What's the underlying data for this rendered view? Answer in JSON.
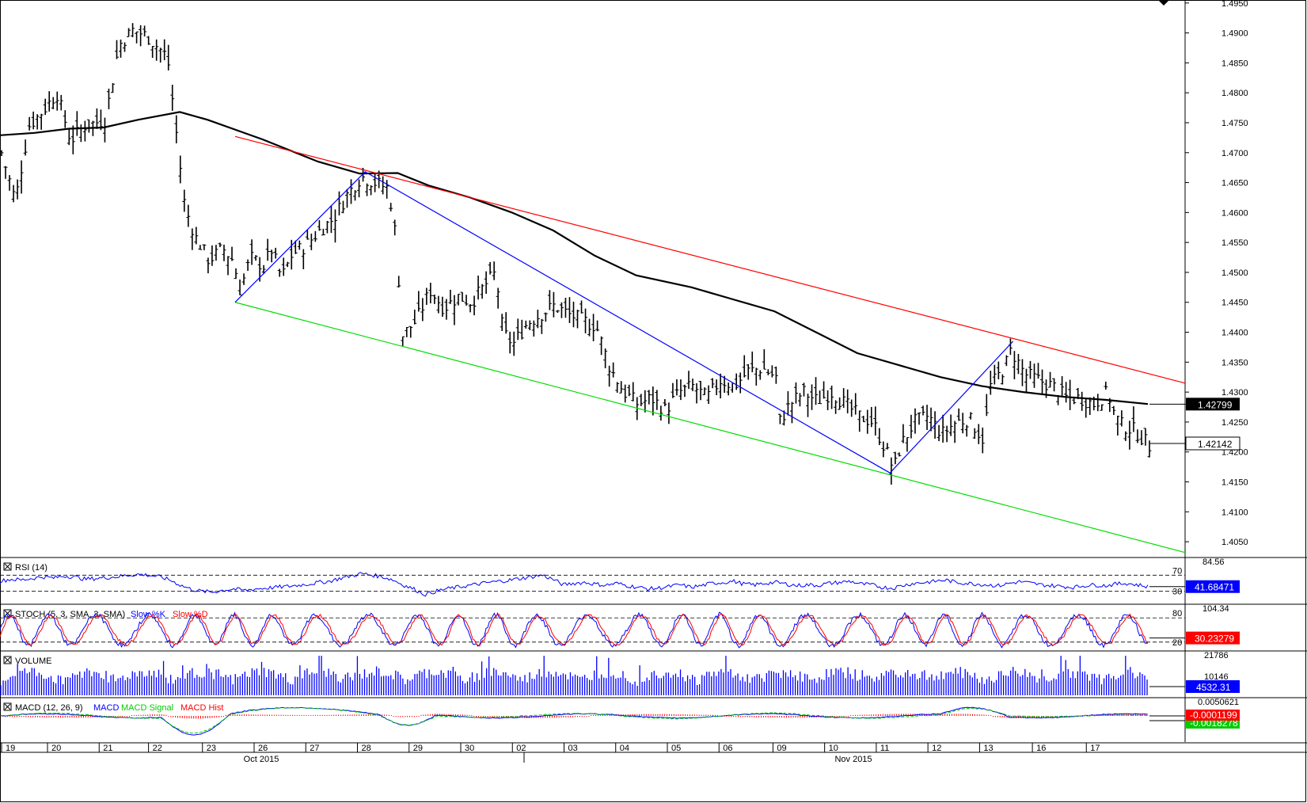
{
  "chart_data": {
    "type": "candlestick",
    "main": {
      "y_ticks": [
        "1.4950",
        "1.4900",
        "1.4850",
        "1.4800",
        "1.4750",
        "1.4700",
        "1.4650",
        "1.4600",
        "1.4550",
        "1.4500",
        "1.4450",
        "1.4400",
        "1.4350",
        "1.4300",
        "1.4250",
        "1.4200",
        "1.4150",
        "1.4100",
        "1.4050"
      ],
      "ylim": [
        1.4025,
        1.4955
      ],
      "ma_value": "1.42799",
      "last_price": "1.42142",
      "colors": {
        "bars": "#000000",
        "ma": "#000000",
        "resistance": "#ff0000",
        "support": "#00dd00",
        "zigzag": "#0000ff"
      },
      "resistance_line": [
        [
          0.34,
          1.4727
        ],
        [
          1.0,
          1.4315
        ]
      ],
      "support_line": [
        [
          0.34,
          1.445
        ],
        [
          1.0,
          1.4032
        ]
      ],
      "zigzag": [
        [
          0.34,
          1.445
        ],
        [
          0.528,
          1.4668
        ],
        [
          1.287,
          1.4165
        ],
        [
          1.465,
          1.4385
        ]
      ],
      "ma_path": [
        [
          0,
          1.4729
        ],
        [
          0.05,
          1.4733
        ],
        [
          0.1,
          1.474
        ],
        [
          0.15,
          1.4742
        ],
        [
          0.2,
          1.4755
        ],
        [
          0.26,
          1.4768
        ],
        [
          0.3,
          1.4755
        ],
        [
          0.38,
          1.4722
        ],
        [
          0.46,
          1.4685
        ],
        [
          0.52,
          1.4665
        ],
        [
          0.575,
          1.4666
        ],
        [
          0.62,
          1.4645
        ],
        [
          0.68,
          1.4625
        ],
        [
          0.74,
          1.46
        ],
        [
          0.8,
          1.457
        ],
        [
          0.86,
          1.4528
        ],
        [
          0.92,
          1.4495
        ],
        [
          1.0,
          1.4475
        ],
        [
          1.06,
          1.4455
        ],
        [
          1.12,
          1.4435
        ],
        [
          1.18,
          1.44
        ],
        [
          1.24,
          1.4365
        ],
        [
          1.3,
          1.4345
        ],
        [
          1.36,
          1.4325
        ],
        [
          1.42,
          1.431
        ],
        [
          1.48,
          1.43
        ],
        [
          1.54,
          1.4292
        ],
        [
          1.6,
          1.4287
        ],
        [
          1.66,
          1.428
        ]
      ],
      "close_path": [
        [
          0,
          1.47
        ],
        [
          0.02,
          1.462
        ],
        [
          0.04,
          1.4745
        ],
        [
          0.06,
          1.477
        ],
        [
          0.08,
          1.48
        ],
        [
          0.1,
          1.472
        ],
        [
          0.12,
          1.4745
        ],
        [
          0.15,
          1.4755
        ],
        [
          0.17,
          1.488
        ],
        [
          0.19,
          1.4905
        ],
        [
          0.21,
          1.4895
        ],
        [
          0.24,
          1.486
        ],
        [
          0.255,
          1.471
        ],
        [
          0.265,
          1.461
        ],
        [
          0.28,
          1.456
        ],
        [
          0.3,
          1.452
        ],
        [
          0.32,
          1.454
        ],
        [
          0.335,
          1.452
        ],
        [
          0.345,
          1.447
        ],
        [
          0.36,
          1.4525
        ],
        [
          0.38,
          1.451
        ],
        [
          0.39,
          1.454
        ],
        [
          0.405,
          1.449
        ],
        [
          0.42,
          1.453
        ],
        [
          0.44,
          1.4545
        ],
        [
          0.46,
          1.457
        ],
        [
          0.48,
          1.459
        ],
        [
          0.5,
          1.463
        ],
        [
          0.52,
          1.466
        ],
        [
          0.54,
          1.465
        ],
        [
          0.56,
          1.464
        ],
        [
          0.57,
          1.456
        ],
        [
          0.58,
          1.4395
        ],
        [
          0.6,
          1.442
        ],
        [
          0.62,
          1.447
        ],
        [
          0.64,
          1.444
        ],
        [
          0.66,
          1.446
        ],
        [
          0.68,
          1.445
        ],
        [
          0.7,
          1.448
        ],
        [
          0.715,
          1.45
        ],
        [
          0.725,
          1.44
        ],
        [
          0.74,
          1.438
        ],
        [
          0.76,
          1.4415
        ],
        [
          0.78,
          1.443
        ],
        [
          0.8,
          1.4445
        ],
        [
          0.82,
          1.443
        ],
        [
          0.84,
          1.442
        ],
        [
          0.86,
          1.441
        ],
        [
          0.88,
          1.434
        ],
        [
          0.9,
          1.43
        ],
        [
          0.92,
          1.428
        ],
        [
          0.94,
          1.429
        ],
        [
          0.96,
          1.427
        ],
        [
          0.98,
          1.43
        ],
        [
          1.0,
          1.431
        ],
        [
          1.02,
          1.429
        ],
        [
          1.04,
          1.432
        ],
        [
          1.06,
          1.431
        ],
        [
          1.08,
          1.4335
        ],
        [
          1.1,
          1.434
        ],
        [
          1.12,
          1.4325
        ],
        [
          1.125,
          1.425
        ],
        [
          1.14,
          1.428
        ],
        [
          1.16,
          1.43
        ],
        [
          1.18,
          1.4285
        ],
        [
          1.2,
          1.43
        ],
        [
          1.22,
          1.428
        ],
        [
          1.24,
          1.426
        ],
        [
          1.26,
          1.425
        ],
        [
          1.28,
          1.42
        ],
        [
          1.29,
          1.417
        ],
        [
          1.3,
          1.421
        ],
        [
          1.32,
          1.425
        ],
        [
          1.34,
          1.426
        ],
        [
          1.36,
          1.423
        ],
        [
          1.38,
          1.425
        ],
        [
          1.4,
          1.4255
        ],
        [
          1.42,
          1.422
        ],
        [
          1.43,
          1.431
        ],
        [
          1.45,
          1.434
        ],
        [
          1.46,
          1.437
        ],
        [
          1.48,
          1.433
        ],
        [
          1.5,
          1.432
        ],
        [
          1.52,
          1.431
        ],
        [
          1.54,
          1.429
        ],
        [
          1.56,
          1.429
        ],
        [
          1.58,
          1.428
        ],
        [
          1.6,
          1.43
        ],
        [
          1.61,
          1.426
        ],
        [
          1.62,
          1.4245
        ],
        [
          1.64,
          1.4235
        ],
        [
          1.66,
          1.421
        ]
      ]
    },
    "x_labels": [
      "19",
      "20",
      "21",
      "22",
      "23",
      "26",
      "27",
      "28",
      "29",
      "30",
      "02",
      "03",
      "04",
      "05",
      "06",
      "09",
      "10",
      "11",
      "12",
      "13",
      "16",
      "17"
    ],
    "x_label_pos": [
      0.0,
      0.04,
      0.085,
      0.128,
      0.175,
      0.22,
      0.265,
      0.31,
      0.355,
      0.4,
      0.445,
      0.49,
      0.535,
      0.58,
      0.625,
      0.672,
      0.717,
      0.762,
      0.807,
      0.852,
      0.898,
      0.945
    ],
    "month_labels": [
      "Oct 2015",
      "Nov 2015"
    ],
    "rsi": {
      "label": "RSI (14)",
      "levels": [
        "70",
        "30"
      ],
      "top_value": "84.56",
      "value": "41.68471",
      "series": [
        55,
        60,
        58,
        62,
        66,
        63,
        68,
        66,
        60,
        62,
        64,
        66,
        70,
        72,
        70,
        66,
        58,
        45,
        35,
        30,
        28,
        33,
        36,
        32,
        36,
        38,
        40,
        42,
        45,
        48,
        52,
        55,
        62,
        68,
        74,
        70,
        66,
        58,
        45,
        35,
        22,
        30,
        36,
        40,
        44,
        48,
        52,
        55,
        58,
        62,
        66,
        70,
        60,
        46,
        50,
        52,
        48,
        45,
        50,
        44,
        40,
        36,
        38,
        42,
        46,
        40,
        44,
        50,
        52,
        55,
        48,
        46,
        50,
        52,
        48,
        44,
        46,
        45,
        50,
        52,
        55,
        48,
        46,
        40,
        38,
        45,
        50,
        52,
        55,
        58,
        52,
        50,
        48,
        46,
        44,
        50,
        54,
        50,
        46,
        44,
        42,
        40,
        44,
        46,
        44,
        48,
        50,
        46,
        42
      ]
    },
    "stoch": {
      "label": "STOCH (5, 3, SMA, 3, SMA)",
      "legend_k": "Slow %K",
      "legend_d": "Slow %D",
      "levels": [
        "80",
        "20"
      ],
      "top_value": "104.34",
      "value": "30.23279"
    },
    "volume": {
      "label": "VOLUME",
      "top_value": "21786",
      "mid_value": "10146",
      "value": "4532.31"
    },
    "macd": {
      "label": "MACD (12, 26, 9)",
      "legend_macd": "MACD",
      "legend_signal": "MACD Signal",
      "legend_hist": "MACD Hist",
      "top_value": "0.0050621",
      "value_main": "-0.0001199",
      "value_second": "-0.0018278"
    }
  }
}
